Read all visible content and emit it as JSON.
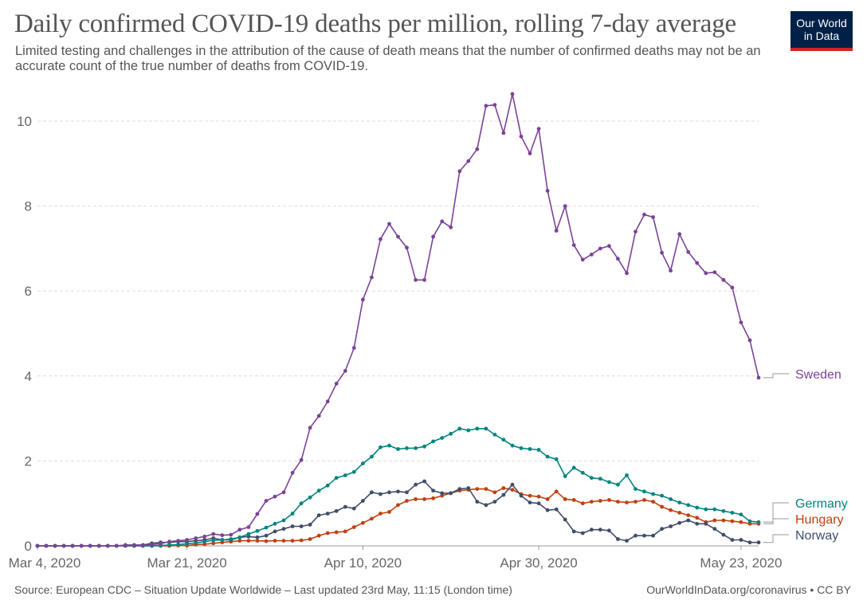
{
  "chart_data": {
    "type": "line",
    "title": "Daily confirmed COVID-19 deaths per million, rolling 7-day average",
    "subtitle": "Limited testing and challenges in the attribution of the cause of death means that the number of confirmed deaths may not be an accurate count of the true number of deaths from COVID-19.",
    "xlabel": "",
    "ylabel": "",
    "x_start": "2020-03-04",
    "x_end": "2020-05-23",
    "x_ticks": [
      "Mar 4, 2020",
      "Mar 21, 2020",
      "Apr 10, 2020",
      "Apr 30, 2020",
      "May 23, 2020"
    ],
    "y_ticks": [
      "0",
      "2",
      "4",
      "6",
      "8",
      "10"
    ],
    "ylim": [
      0,
      10.6
    ],
    "grid": true,
    "legend": "labels at right end of lines",
    "series": [
      {
        "name": "Sweden",
        "color": "#7b4397",
        "values": [
          0,
          0,
          0,
          0,
          0,
          0,
          0,
          0,
          0,
          0,
          0.01,
          0.01,
          0.01,
          0.03,
          0.05,
          0.1,
          0.12,
          0.14,
          0.18,
          0.22,
          0.28,
          0.25,
          0.26,
          0.38,
          0.44,
          0.75,
          1.06,
          1.16,
          1.26,
          1.72,
          2.02,
          2.78,
          3.06,
          3.4,
          3.82,
          4.12,
          4.66,
          5.8,
          6.32,
          7.22,
          7.58,
          7.28,
          7.02,
          6.26,
          6.26,
          7.28,
          7.64,
          7.5,
          8.82,
          9.06,
          9.34,
          10.36,
          10.38,
          9.72,
          10.64,
          9.64,
          9.24,
          9.82,
          8.36,
          7.42,
          8,
          7.08,
          6.74,
          6.86,
          7,
          7.06,
          6.76,
          6.42,
          7.4,
          7.8,
          7.74,
          6.9,
          6.48,
          7.34,
          6.92,
          6.66,
          6.42,
          6.44,
          6.26,
          6.08,
          5.26,
          4.84,
          3.96
        ]
      },
      {
        "name": "Germany",
        "color": "#00847e",
        "values": [
          0,
          0,
          0,
          0,
          0,
          0,
          0,
          0,
          0,
          0,
          0,
          0,
          0,
          0,
          0.01,
          0.02,
          0.03,
          0.05,
          0.07,
          0.1,
          0.13,
          0.14,
          0.16,
          0.2,
          0.28,
          0.35,
          0.43,
          0.52,
          0.6,
          0.76,
          1.0,
          1.14,
          1.3,
          1.42,
          1.6,
          1.66,
          1.74,
          1.94,
          2.1,
          2.32,
          2.36,
          2.28,
          2.3,
          2.3,
          2.34,
          2.46,
          2.54,
          2.64,
          2.76,
          2.72,
          2.76,
          2.76,
          2.62,
          2.5,
          2.36,
          2.3,
          2.28,
          2.26,
          2.1,
          2.04,
          1.64,
          1.84,
          1.72,
          1.6,
          1.58,
          1.5,
          1.44,
          1.66,
          1.34,
          1.28,
          1.22,
          1.18,
          1.1,
          1.02,
          0.96,
          0.9,
          0.86,
          0.86,
          0.82,
          0.78,
          0.74,
          0.58,
          0.56
        ]
      },
      {
        "name": "Hungary",
        "color": "#c0400f",
        "values": [
          0,
          0,
          0,
          0,
          0,
          0,
          0,
          0,
          0,
          0,
          0,
          0,
          0,
          0,
          0,
          0,
          0.01,
          0.01,
          0.03,
          0.04,
          0.06,
          0.08,
          0.1,
          0.12,
          0.12,
          0.12,
          0.11,
          0.12,
          0.12,
          0.12,
          0.13,
          0.16,
          0.24,
          0.3,
          0.32,
          0.34,
          0.44,
          0.54,
          0.64,
          0.76,
          0.8,
          0.96,
          1.06,
          1.1,
          1.1,
          1.12,
          1.18,
          1.24,
          1.3,
          1.32,
          1.34,
          1.34,
          1.26,
          1.36,
          1.32,
          1.22,
          1.18,
          1.16,
          1.1,
          1.28,
          1.1,
          1.08,
          1.0,
          1.04,
          1.06,
          1.08,
          1.04,
          1.02,
          1.04,
          1.08,
          1.04,
          0.92,
          0.84,
          0.78,
          0.72,
          0.66,
          0.56,
          0.6,
          0.6,
          0.58,
          0.56,
          0.52,
          0.52
        ]
      },
      {
        "name": "Norway",
        "color": "#3f4e68",
        "values": [
          0,
          0,
          0,
          0,
          0,
          0,
          0,
          0,
          0,
          0,
          0.02,
          0.02,
          0.02,
          0.06,
          0.08,
          0.08,
          0.1,
          0.1,
          0.12,
          0.14,
          0.18,
          0.14,
          0.14,
          0.2,
          0.22,
          0.2,
          0.24,
          0.34,
          0.4,
          0.46,
          0.46,
          0.5,
          0.72,
          0.76,
          0.82,
          0.92,
          0.88,
          1.06,
          1.26,
          1.22,
          1.26,
          1.28,
          1.26,
          1.44,
          1.52,
          1.3,
          1.24,
          1.24,
          1.34,
          1.36,
          1.04,
          0.96,
          1.04,
          1.2,
          1.44,
          1.18,
          1.02,
          1.0,
          0.84,
          0.86,
          0.62,
          0.34,
          0.3,
          0.38,
          0.38,
          0.36,
          0.16,
          0.12,
          0.24,
          0.24,
          0.24,
          0.4,
          0.46,
          0.54,
          0.6,
          0.52,
          0.52,
          0.4,
          0.26,
          0.14,
          0.14,
          0.08,
          0.08
        ]
      }
    ]
  },
  "branding": {
    "logo_line1": "Our World",
    "logo_line2": "in Data",
    "logo_bg": "#002147",
    "logo_accent": "#ce261e"
  },
  "footer": {
    "source": "Source: European CDC – Situation Update Worldwide – Last updated 23rd May, 11:15 (London time)",
    "license": "OurWorldInData.org/coronavirus • CC BY"
  }
}
